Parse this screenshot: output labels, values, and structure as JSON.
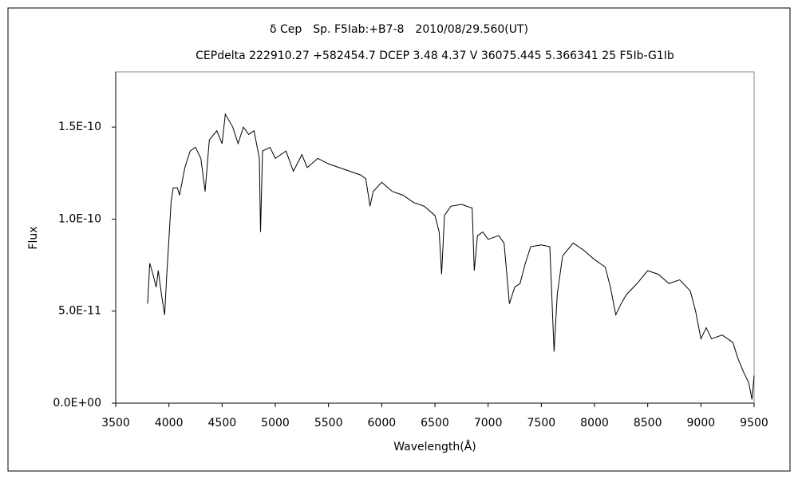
{
  "chart_data": {
    "type": "line",
    "title": "δ Cep　Sp. F5Iab:+B7-8　2010/08/29.560(UT)",
    "subtitle": "CEPdelta 222910.27 +582454.7 DCEP 3.48 4.37 V 36075.445 5.366341 25 F5Ib-G1Ib",
    "x_label": "Wavelength(Å)",
    "y_label": "Flux",
    "color": "#000000",
    "x": [
      3800,
      3820,
      3850,
      3880,
      3900,
      3930,
      3960,
      3980,
      4000,
      4020,
      4040,
      4080,
      4100,
      4150,
      4200,
      4250,
      4300,
      4340,
      4380,
      4450,
      4500,
      4530,
      4600,
      4650,
      4700,
      4750,
      4800,
      4850,
      4861,
      4880,
      4950,
      5000,
      5100,
      5170,
      5250,
      5300,
      5400,
      5500,
      5600,
      5700,
      5800,
      5850,
      5890,
      5920,
      6000,
      6100,
      6200,
      6300,
      6400,
      6500,
      6540,
      6563,
      6590,
      6650,
      6750,
      6850,
      6870,
      6900,
      6950,
      7000,
      7100,
      7150,
      7200,
      7250,
      7300,
      7350,
      7400,
      7500,
      7580,
      7620,
      7650,
      7700,
      7800,
      7900,
      8000,
      8100,
      8150,
      8200,
      8250,
      8300,
      8400,
      8500,
      8600,
      8700,
      8800,
      8900,
      8950,
      9000,
      9050,
      9100,
      9200,
      9300,
      9350,
      9400,
      9450,
      9480,
      9500
    ],
    "values": [
      5.4e-11,
      7.6e-11,
      7e-11,
      6.3e-11,
      7.2e-11,
      5.9e-11,
      4.8e-11,
      7e-11,
      8.9e-11,
      1.09e-10,
      1.17e-10,
      1.17e-10,
      1.13e-10,
      1.28e-10,
      1.37e-10,
      1.39e-10,
      1.33e-10,
      1.15e-10,
      1.43e-10,
      1.48e-10,
      1.41e-10,
      1.57e-10,
      1.5e-10,
      1.41e-10,
      1.5e-10,
      1.46e-10,
      1.48e-10,
      1.33e-10,
      9.3e-11,
      1.37e-10,
      1.39e-10,
      1.33e-10,
      1.37e-10,
      1.26e-10,
      1.35e-10,
      1.28e-10,
      1.33e-10,
      1.3e-10,
      1.28e-10,
      1.26e-10,
      1.24e-10,
      1.22e-10,
      1.07e-10,
      1.15e-10,
      1.2e-10,
      1.15e-10,
      1.13e-10,
      1.09e-10,
      1.07e-10,
      1.02e-10,
      9.3e-11,
      7e-11,
      1.02e-10,
      1.07e-10,
      1.08e-10,
      1.06e-10,
      7.2e-11,
      9.1e-11,
      9.3e-11,
      8.9e-11,
      9.1e-11,
      8.7e-11,
      5.4e-11,
      6.3e-11,
      6.5e-11,
      7.6e-11,
      8.5e-11,
      8.6e-11,
      8.5e-11,
      2.8e-11,
      5.9e-11,
      8e-11,
      8.7e-11,
      8.3e-11,
      7.8e-11,
      7.4e-11,
      6.3e-11,
      4.8e-11,
      5.4e-11,
      5.9e-11,
      6.5e-11,
      7.2e-11,
      7e-11,
      6.5e-11,
      6.7e-11,
      6.1e-11,
      5e-11,
      3.5e-11,
      4.1e-11,
      3.5e-11,
      3.7e-11,
      3.3e-11,
      2.4e-11,
      1.7e-11,
      1.1e-11,
      2e-12,
      1.5e-11
    ],
    "xlim": [
      3500,
      9500
    ],
    "xticks": [
      3500,
      4000,
      4500,
      5000,
      5500,
      6000,
      6500,
      7000,
      7500,
      8000,
      8500,
      9000,
      9500
    ],
    "ylim": [
      0,
      1.8e-10
    ],
    "yticks": [
      {
        "value": 0,
        "label": "0.0E+00"
      },
      {
        "value": 5e-11,
        "label": "5.0E-11"
      },
      {
        "value": 1e-10,
        "label": "1.0E-10"
      },
      {
        "value": 1.5e-10,
        "label": "1.5E-10"
      }
    ],
    "grid": false
  }
}
